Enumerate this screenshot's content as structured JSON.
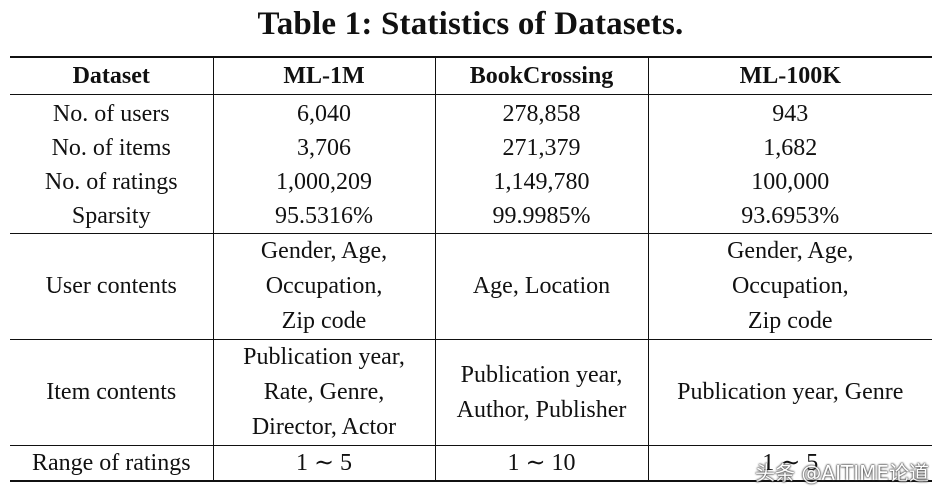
{
  "caption": "Table 1: Statistics of Datasets.",
  "header": {
    "col0": "Dataset",
    "col1": "ML-1M",
    "col2": "BookCrossing",
    "col3": "ML-100K"
  },
  "stats_rows": [
    {
      "label": "No. of users",
      "ml1m": "6,040",
      "book": "278,858",
      "ml100k": "943"
    },
    {
      "label": "No. of items",
      "ml1m": "3,706",
      "book": "271,379",
      "ml100k": "1,682"
    },
    {
      "label": "No. of ratings",
      "ml1m": "1,000,209",
      "book": "1,149,780",
      "ml100k": "100,000"
    },
    {
      "label": "Sparsity",
      "ml1m": "95.5316%",
      "book": "99.9985%",
      "ml100k": "93.6953%"
    }
  ],
  "user_contents": {
    "label": "User contents",
    "ml1m": [
      "Gender, Age,",
      "Occupation,",
      "Zip code"
    ],
    "book": [
      "Age, Location"
    ],
    "ml100k": [
      "Gender, Age,",
      "Occupation,",
      "Zip code"
    ]
  },
  "item_contents": {
    "label": "Item contents",
    "ml1m": [
      "Publication year,",
      "Rate, Genre,",
      "Director, Actor"
    ],
    "book": [
      "Publication year,",
      "Author, Publisher"
    ],
    "ml100k": [
      "Publication year, Genre"
    ]
  },
  "range_row": {
    "label": "Range of ratings",
    "ml1m": "1 ∼ 5",
    "book": "1 ∼ 10",
    "ml100k": "1 ∼ 5"
  },
  "watermark": "头条 @AITIME论道"
}
